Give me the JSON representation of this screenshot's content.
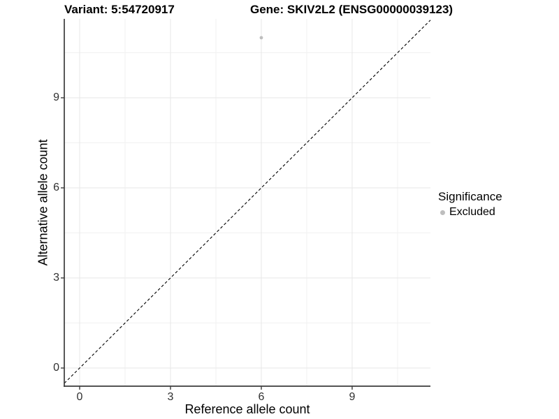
{
  "titles": {
    "variant": "Variant: 5:54720917",
    "gene": "Gene: SKIV2L2 (ENSG00000039123)"
  },
  "axes": {
    "x_label": "Reference allele count",
    "y_label": "Alternative allele count",
    "x_ticks": [
      "0",
      "3",
      "6",
      "9"
    ],
    "y_ticks": [
      "0",
      "3",
      "6",
      "9"
    ]
  },
  "legend": {
    "title": "Significance",
    "items": [
      {
        "label": "Excluded",
        "color": "#bebebe"
      }
    ]
  },
  "chart_data": {
    "type": "scatter",
    "title": "Variant: 5:54720917 | Gene: SKIV2L2 (ENSG00000039123)",
    "xlabel": "Reference allele count",
    "ylabel": "Alternative allele count",
    "xlim": [
      -0.5,
      11.6
    ],
    "ylim": [
      -0.6,
      11.6
    ],
    "x_ticks": [
      0,
      3,
      6,
      9
    ],
    "y_ticks": [
      0,
      3,
      6,
      9
    ],
    "grid": true,
    "legend_position": "right",
    "series": [
      {
        "name": "Excluded",
        "color": "#bebebe",
        "points": [
          {
            "x": 6,
            "y": 11
          }
        ]
      }
    ],
    "reference_line": {
      "equation": "y = x",
      "style": "dashed",
      "color": "#000000"
    }
  },
  "colors": {
    "background": "#ffffff",
    "axis_line": "#3c3c3c",
    "grid_major": "#e7e7e7",
    "grid_minor": "#f1f1f1",
    "tick_text": "#303030",
    "point": "#bebebe"
  }
}
